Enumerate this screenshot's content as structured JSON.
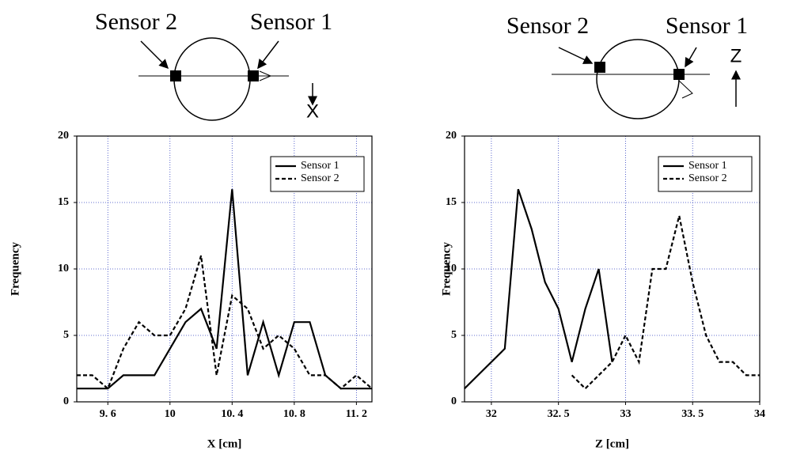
{
  "chart_data": [
    {
      "type": "line",
      "annotations": [
        "Sensor 2",
        "Sensor 1",
        "X"
      ],
      "xlabel": "X [cm]",
      "ylabel": "Frequency",
      "x": [
        9.4,
        9.5,
        9.6,
        9.7,
        9.8,
        9.9,
        10.0,
        10.1,
        10.2,
        10.3,
        10.4,
        10.5,
        10.6,
        10.7,
        10.8,
        10.9,
        11.0,
        11.1,
        11.2,
        11.3
      ],
      "series": [
        {
          "name": "Sensor 1",
          "color": "#000000",
          "dash": false,
          "values": [
            1,
            1,
            1,
            2,
            2,
            2,
            4,
            6,
            7,
            4,
            16,
            2,
            6,
            2,
            6,
            6,
            2,
            1,
            1,
            1
          ]
        },
        {
          "name": "Sensor 2",
          "color": "#000000",
          "dash": true,
          "values": [
            2,
            2,
            1,
            4,
            6,
            5,
            5,
            7,
            11,
            2,
            8,
            7,
            4,
            5,
            4,
            2,
            2,
            1,
            2,
            1
          ]
        }
      ],
      "xlim": [
        9.4,
        11.3
      ],
      "xticks": [
        {
          "value": 9.6,
          "label": "9. 6"
        },
        10,
        {
          "value": 10.4,
          "label": "10. 4"
        },
        {
          "value": 10.8,
          "label": "10. 8"
        },
        {
          "value": 11.2,
          "label": "11. 2"
        }
      ],
      "ylim": [
        0,
        20
      ],
      "yticks": [
        0,
        5,
        10,
        15,
        20
      ],
      "grid": true,
      "legend": "top-right"
    },
    {
      "type": "line",
      "annotations": [
        "Sensor 2",
        "Sensor 1",
        "Z"
      ],
      "xlabel": "Z [cm]",
      "ylabel": "Frequency",
      "x": [
        31.8,
        31.9,
        32.0,
        32.1,
        32.2,
        32.3,
        32.4,
        32.5,
        32.6,
        32.7,
        32.8,
        32.9,
        33.0,
        33.1,
        33.2,
        33.3,
        33.4,
        33.5,
        33.6,
        33.7,
        33.8,
        33.9,
        34.0
      ],
      "series": [
        {
          "name": "Sensor 1",
          "color": "#000000",
          "dash": false,
          "values": [
            1,
            2,
            3,
            4,
            16,
            13,
            9,
            7,
            3,
            7,
            10,
            3,
            null,
            null,
            null,
            null,
            null,
            null,
            null,
            null,
            null,
            null,
            null
          ]
        },
        {
          "name": "Sensor 2",
          "color": "#000000",
          "dash": true,
          "values": [
            null,
            null,
            null,
            null,
            null,
            null,
            null,
            null,
            2,
            1,
            2,
            3,
            5,
            3,
            10,
            10,
            14,
            9,
            5,
            3,
            3,
            2,
            2
          ]
        }
      ],
      "xlim": [
        31.8,
        34.0
      ],
      "xticks": [
        32,
        {
          "value": 32.5,
          "label": "32. 5"
        },
        33,
        {
          "value": 33.5,
          "label": "33. 5"
        },
        34
      ],
      "ylim": [
        0,
        20
      ],
      "yticks": [
        0,
        5,
        10,
        15,
        20
      ],
      "grid": true,
      "legend": "top-right"
    }
  ]
}
